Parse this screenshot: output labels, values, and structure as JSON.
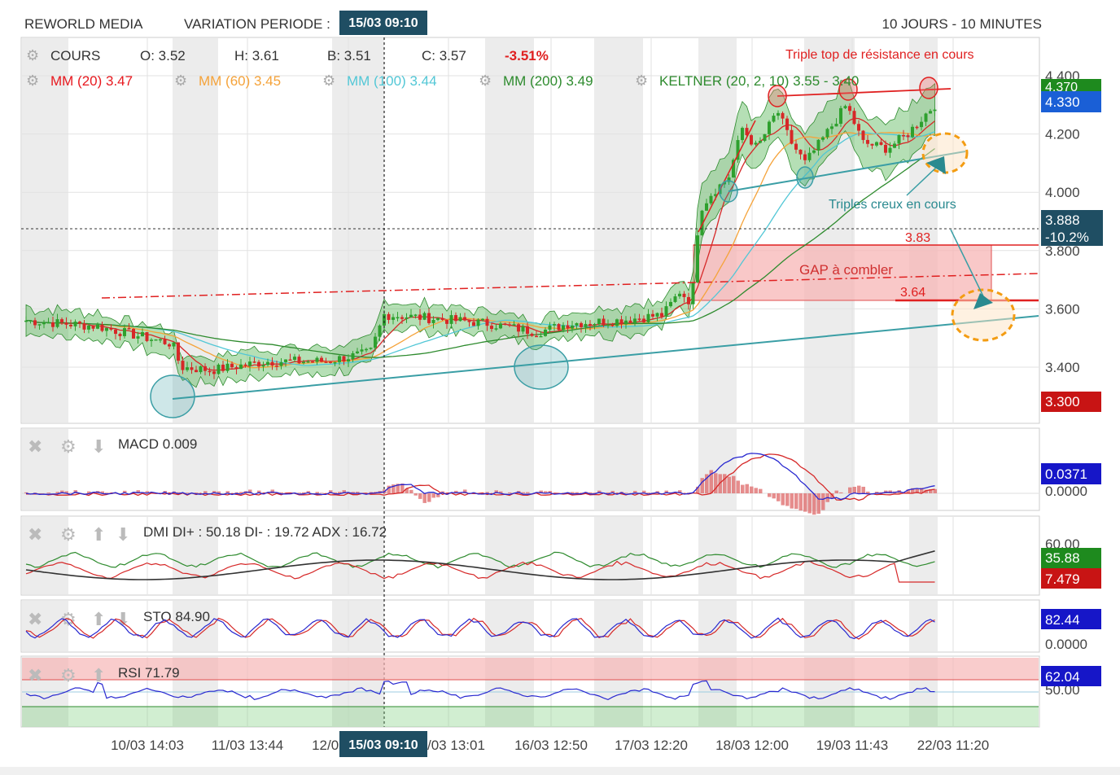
{
  "header": {
    "instrument": "REWORLD MEDIA",
    "variation_label": "VARIATION PERIODE :",
    "variation_date": "15/03 09:10",
    "period": "10 JOURS - 10 MINUTES"
  },
  "legend": {
    "cours_label": "COURS",
    "open": "O: 3.52",
    "high": "H: 3.61",
    "low": "B: 3.51",
    "close": "C: 3.57",
    "change": "-3.51%",
    "indicators": [
      {
        "label": "MM (20)",
        "value": "3.47",
        "color": "#e8191f"
      },
      {
        "label": "MM (60)",
        "value": "3.45",
        "color": "#f5a33a"
      },
      {
        "label": "MM (100)",
        "value": "3.44",
        "color": "#52c7d6"
      },
      {
        "label": "MM (200)",
        "value": "3.49",
        "color": "#2e8b2e"
      },
      {
        "label": "KELTNER (20, 2, 10)",
        "value": "3.55 - 3.40",
        "color": "#2e8b2e"
      }
    ]
  },
  "annotations": {
    "triple_top": "Triple top de résistance en cours",
    "triple_bottom": "Triples creux en cours",
    "gap": "GAP à combler",
    "gap_high": "3.83",
    "gap_low": "3.64"
  },
  "badges": {
    "top_green": "4.370",
    "top_blue": "4.330",
    "cursor_price": "3.888",
    "cursor_pct": "-10.2%",
    "bottom_red": "3.300",
    "macd_blue": "0.0371",
    "macd_zero": "0.0000",
    "dmi_top": "60.00",
    "dmi_green": "35.88",
    "dmi_red": "7.479",
    "sto_blue": "82.44",
    "sto_zero": "0.0000",
    "rsi_blue": "62.04",
    "rsi_mid": "50.00"
  },
  "panels": {
    "macd": "MACD  0.009",
    "dmi": "DMI  DI+ : 50.18  DI- : 19.72  ADX : 16.72",
    "sto": "STO  84.90",
    "rsi": "RSI  71.79"
  },
  "colors": {
    "up": "#2ea02e",
    "down": "#d62828",
    "keltner_fill": "#5cb85c",
    "gap_fill": "#f7b6b6",
    "trend_teal": "#3a9ea5",
    "blue": "#2828d0",
    "red": "#d62828",
    "green": "#2e8b2e",
    "dark": "#222222",
    "badge_dark": "#1f4e63",
    "badge_blue": "#1a5fd6",
    "badge_green": "#1e8a1e",
    "badge_red": "#c81414",
    "badge_navy": "#1616c8"
  },
  "x_axis": {
    "cursor_label": "15/03 09:10",
    "ticks": [
      "10/03 14:03",
      "11/03 13:44",
      "12/03 13:30",
      "13/03 13:01",
      "16/03 12:50",
      "17/03 12:20",
      "18/03 12:00",
      "19/03 11:43",
      "22/03 11:20"
    ]
  },
  "chart_data": {
    "type": "line",
    "title": "REWORLD MEDIA",
    "xlabel": "",
    "ylabel": "",
    "ylim": [
      3.2,
      4.45
    ],
    "y_ticks": [
      "4.400",
      "4.200",
      "4.000",
      "3.800",
      "3.600",
      "3.400"
    ],
    "x": [
      "10/03 14:03",
      "11/03 13:44",
      "12/03 13:30",
      "13/03 13:01",
      "16/03 12:50",
      "17/03 12:20",
      "18/03 12:00",
      "19/03 11:43",
      "22/03 11:20"
    ],
    "series": [
      {
        "name": "COURS",
        "values": [
          3.55,
          3.41,
          3.43,
          3.56,
          3.53,
          3.6,
          4.2,
          4.25,
          4.33
        ]
      },
      {
        "name": "MM (20)",
        "values": [
          3.53,
          3.43,
          3.44,
          3.53,
          3.54,
          3.57,
          4.1,
          4.2,
          4.27
        ]
      },
      {
        "name": "MM (60)",
        "values": [
          3.55,
          3.45,
          3.44,
          3.51,
          3.53,
          3.54,
          3.85,
          4.12,
          4.2
        ]
      },
      {
        "name": "MM (100)",
        "values": [
          3.56,
          3.47,
          3.45,
          3.49,
          3.52,
          3.53,
          3.72,
          4.02,
          4.15
        ]
      },
      {
        "name": "MM (200)",
        "values": [
          3.58,
          3.5,
          3.47,
          3.48,
          3.5,
          3.51,
          3.58,
          3.7,
          3.82
        ]
      }
    ],
    "gap_zone": [
      3.64,
      3.83
    ]
  }
}
